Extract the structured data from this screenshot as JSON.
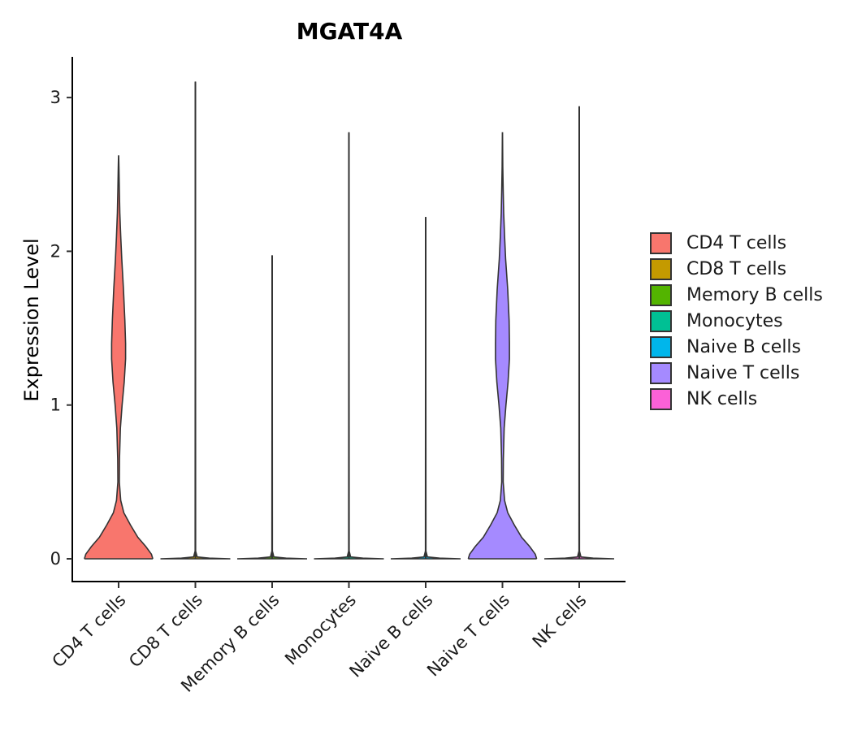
{
  "chart_data": {
    "type": "violin",
    "title": "MGAT4A",
    "xlabel": "",
    "ylabel": "Expression Level",
    "ylim": [
      -0.15,
      3.25
    ],
    "yticks": [
      0,
      1,
      2,
      3
    ],
    "categories": [
      "CD4 T cells",
      "CD8 T cells",
      "Memory B cells",
      "Monocytes",
      "Naive B cells",
      "Naive T cells",
      "NK cells"
    ],
    "colors": [
      "#F8766D",
      "#C49A00",
      "#53B400",
      "#00C094",
      "#00B6EB",
      "#A58AFF",
      "#FB61D7"
    ],
    "max_values": [
      2.62,
      3.1,
      1.97,
      2.77,
      2.22,
      2.77,
      2.94
    ],
    "legend": {
      "position": "right",
      "items": [
        "CD4 T cells",
        "CD8 T cells",
        "Memory B cells",
        "Monocytes",
        "Naive B cells",
        "Naive T cells",
        "NK cells"
      ]
    }
  }
}
